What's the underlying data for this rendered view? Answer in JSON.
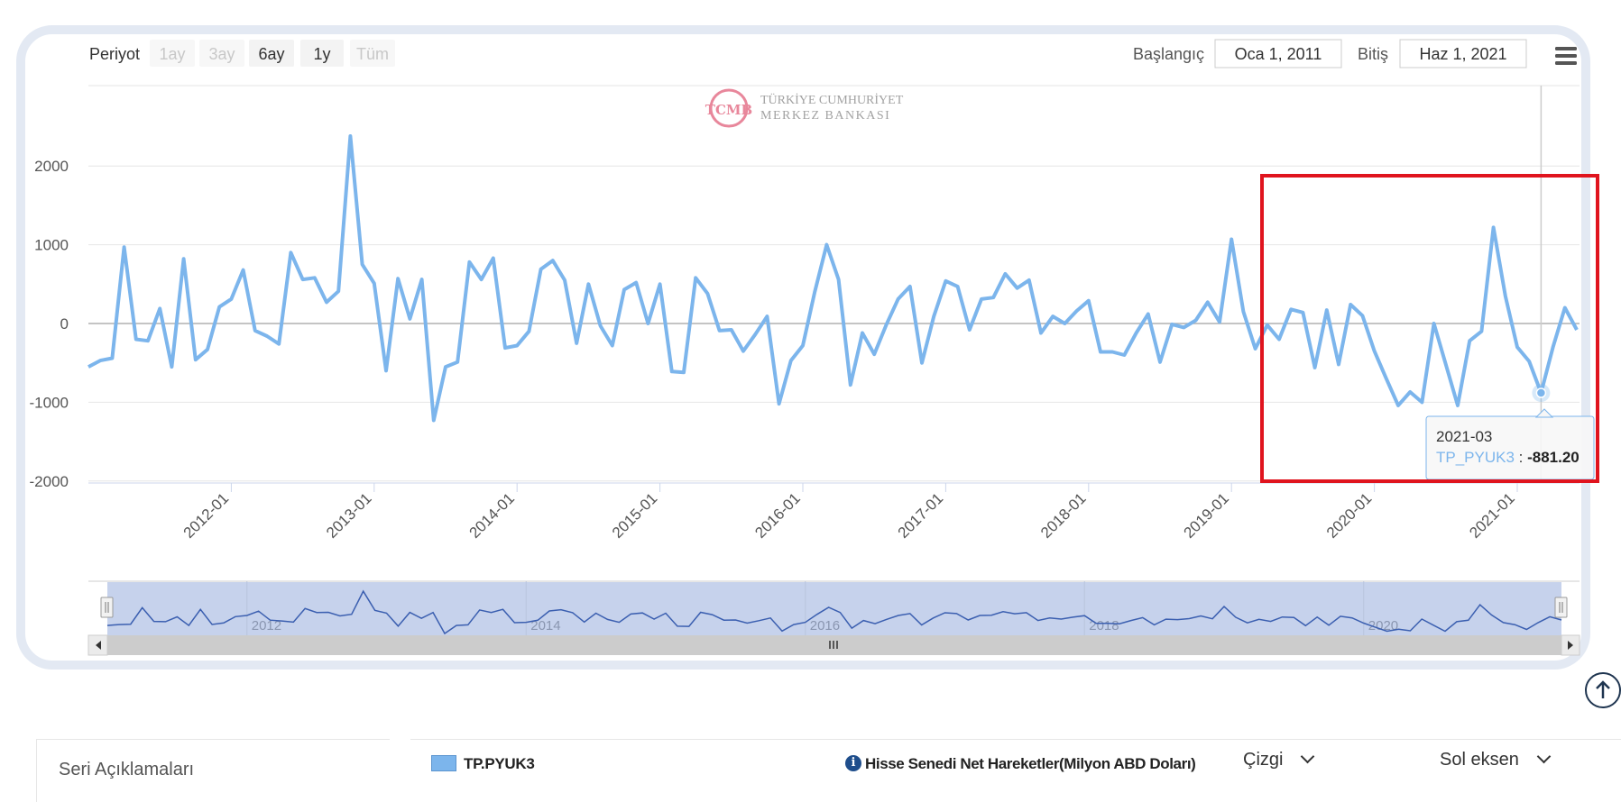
{
  "toolbar": {
    "period_label": "Periyot",
    "range_buttons": [
      "1ay",
      "3ay",
      "6ay",
      "1y",
      "Tüm"
    ],
    "range_enabled": [
      false,
      false,
      true,
      true,
      false
    ],
    "start_label": "Başlangıç",
    "start_value": "Oca 1, 2011",
    "end_label": "Bitiş",
    "end_value": "Haz 1, 2021",
    "menu_icon": "hamburger-menu-icon"
  },
  "watermark": {
    "monogram": "TCMB",
    "line1": "TÜRKİYE CUMHURİYET",
    "line2": "MERKEZ BANKASI"
  },
  "tooltip": {
    "date": "2021-03",
    "series": "TP_PYUK3",
    "separator": " : ",
    "value": "-881.20"
  },
  "chart_data": {
    "type": "line",
    "x_start": "2011-01",
    "frequency": "monthly",
    "x_ticks": [
      "2012-01",
      "2013-01",
      "2014-01",
      "2015-01",
      "2016-01",
      "2017-01",
      "2018-01",
      "2019-01",
      "2020-01",
      "2021-01"
    ],
    "y_ticks": [
      2000,
      1000,
      0,
      -1000,
      -2000
    ],
    "ylim": [
      -2000,
      3000
    ],
    "grid": true,
    "navigator_labels": [
      "2012",
      "2014",
      "2016",
      "2018",
      "2020"
    ],
    "highlight": {
      "from": "2019-03",
      "to": "2021-06",
      "color": "#e0141e"
    },
    "crosshair": "2021-03",
    "series": [
      {
        "name": "TP_PYUK3",
        "color": "#7cb5ec",
        "values": [
          -550,
          -470,
          -440,
          970,
          -200,
          -220,
          190,
          -550,
          820,
          -460,
          -330,
          210,
          310,
          680,
          -90,
          -160,
          -260,
          900,
          560,
          580,
          270,
          410,
          2380,
          750,
          510,
          -600,
          570,
          60,
          560,
          -1230,
          -550,
          -490,
          780,
          560,
          830,
          -310,
          -280,
          -100,
          690,
          800,
          550,
          -250,
          500,
          -30,
          -280,
          430,
          520,
          0,
          500,
          -610,
          -620,
          580,
          380,
          -90,
          -80,
          -350,
          -140,
          90,
          -1020,
          -470,
          -280,
          400,
          1000,
          560,
          -780,
          -120,
          -390,
          -20,
          310,
          470,
          -500,
          90,
          540,
          470,
          -80,
          310,
          330,
          630,
          450,
          550,
          -120,
          90,
          0,
          160,
          290,
          -360,
          -360,
          -400,
          -120,
          120,
          -490,
          -10,
          -50,
          40,
          270,
          20,
          1070,
          150,
          -320,
          -20,
          -200,
          180,
          140,
          -560,
          170,
          -520,
          240,
          100,
          -350,
          -700,
          -1040,
          -870,
          -1000,
          0,
          -520,
          -1040,
          -220,
          -100,
          1220,
          350,
          -300,
          -480,
          -881.2,
          -300,
          200,
          -80
        ]
      }
    ]
  },
  "legend_row": {
    "panel_title": "Seri Açıklamaları",
    "series_code": "TP.PYUK3",
    "series_desc": "Hisse Senedi Net Hareketler(Milyon ABD Doları)",
    "chart_type": "Çizgi",
    "axis": "Sol eksen"
  }
}
